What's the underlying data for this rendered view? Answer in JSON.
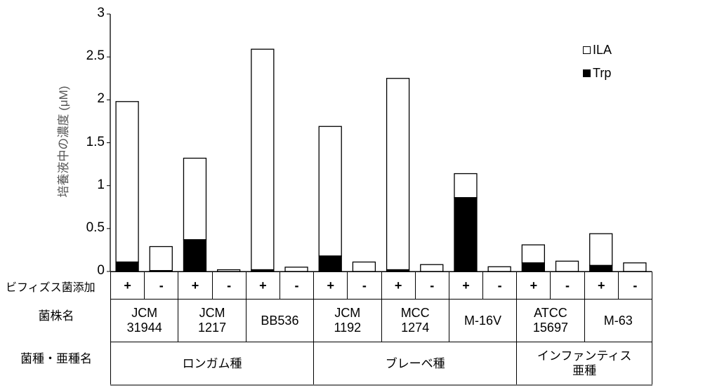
{
  "chart_data": {
    "type": "bar",
    "stacked": true,
    "title": "",
    "xlabel": "",
    "ylabel": "培養液中の濃度 (μM)",
    "ylim": [
      0,
      3
    ],
    "yticks": [
      "0",
      "0.5",
      "1",
      "1.5",
      "2",
      "2.5",
      "3"
    ],
    "grid": false,
    "legend_position": "upper right",
    "legend": [
      {
        "name": "ILA",
        "color": "#ffffff"
      },
      {
        "name": "Trp",
        "color": "#000000"
      }
    ],
    "categories": [
      "JCM 31944 +",
      "JCM 31944 -",
      "JCM 1217 +",
      "JCM 1217 -",
      "BB536 +",
      "BB536 -",
      "JCM 1192 +",
      "JCM 1192 -",
      "MCC 1274 +",
      "MCC 1274 -",
      "M-16V +",
      "M-16V -",
      "ATCC 15697 +",
      "ATCC 15697 -",
      "M-63 +",
      "M-63 -"
    ],
    "series": [
      {
        "name": "Trp",
        "values": [
          0.11,
          0.01,
          0.37,
          0.0,
          0.02,
          0.0,
          0.18,
          0.0,
          0.02,
          0.0,
          0.86,
          0.0,
          0.1,
          0.0,
          0.07,
          0.0
        ]
      },
      {
        "name": "ILA",
        "values": [
          1.87,
          0.28,
          0.95,
          0.02,
          2.57,
          0.05,
          1.51,
          0.11,
          2.23,
          0.08,
          0.28,
          0.055,
          0.21,
          0.12,
          0.37,
          0.1
        ]
      }
    ],
    "totals": [
      1.98,
      0.29,
      1.32,
      0.02,
      2.59,
      0.05,
      1.69,
      0.11,
      2.25,
      0.08,
      1.14,
      0.055,
      0.31,
      0.12,
      0.44,
      0.1
    ]
  },
  "table": {
    "row_labels": {
      "addition": "ビフィズス菌添加",
      "strain": "菌株名",
      "species": "菌種・亜種名"
    },
    "addition": [
      "+",
      "-",
      "+",
      "-",
      "+",
      "-",
      "+",
      "-",
      "+",
      "-",
      "+",
      "-",
      "+",
      "-",
      "+",
      "-"
    ],
    "strains": [
      {
        "line1": "JCM",
        "line2": "31944"
      },
      {
        "line1": "JCM",
        "line2": "1217"
      },
      {
        "line1": "BB536",
        "line2": ""
      },
      {
        "line1": "JCM",
        "line2": "1192"
      },
      {
        "line1": "MCC",
        "line2": "1274"
      },
      {
        "line1": "M-16V",
        "line2": ""
      },
      {
        "line1": "ATCC",
        "line2": "15697"
      },
      {
        "line1": "M-63",
        "line2": ""
      }
    ],
    "species": [
      {
        "line1": "ロンガム種",
        "line2": "",
        "span": 6
      },
      {
        "line1": "ブレーベ種",
        "line2": "",
        "span": 6
      },
      {
        "line1": "インファンティス",
        "line2": "亜種",
        "span": 4
      }
    ]
  }
}
